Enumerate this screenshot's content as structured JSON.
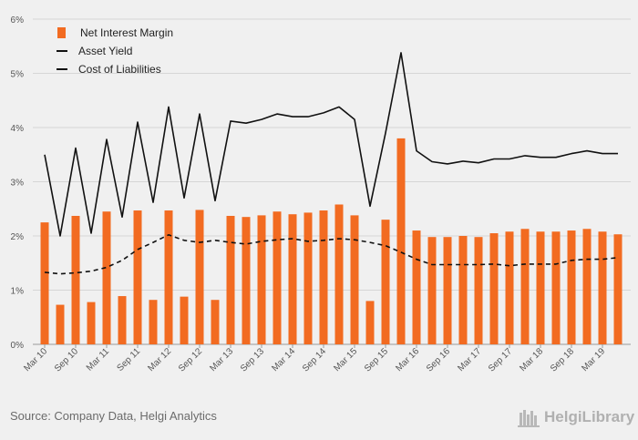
{
  "chart_data": {
    "type": "bar",
    "ylim": [
      0,
      6
    ],
    "yticks": [
      "0%",
      "1%",
      "2%",
      "3%",
      "4%",
      "5%",
      "6%"
    ],
    "tick_labels": [
      "Mar 10",
      "Sep 10",
      "Mar 11",
      "Sep 11",
      "Mar 12",
      "Sep 12",
      "Mar 13",
      "Sep 13",
      "Mar 14",
      "Sep 14",
      "Mar 15",
      "Sep 15",
      "Mar 16",
      "Sep 16",
      "Mar 17",
      "Sep 17",
      "Mar 18",
      "Sep 18",
      "Mar 19"
    ],
    "series": [
      {
        "name": "Net Interest Margin",
        "kind": "bar",
        "color": "#f26b21",
        "values": [
          2.25,
          0.73,
          2.37,
          0.78,
          2.45,
          0.89,
          2.47,
          0.82,
          2.47,
          0.88,
          2.48,
          0.82,
          2.37,
          2.35,
          2.38,
          2.45,
          2.4,
          2.43,
          2.47,
          2.58,
          2.38,
          0.8,
          2.3,
          3.8,
          2.1,
          1.98,
          1.98,
          2.0,
          1.98,
          2.05,
          2.08,
          2.13,
          2.08,
          2.08,
          2.1,
          2.13,
          2.08,
          2.03
        ]
      },
      {
        "name": "Asset Yield",
        "kind": "line",
        "color": "#111111",
        "values": [
          3.5,
          2.0,
          3.62,
          2.05,
          3.78,
          2.35,
          4.1,
          2.62,
          4.38,
          2.7,
          4.25,
          2.65,
          4.12,
          4.08,
          4.15,
          4.25,
          4.2,
          4.2,
          4.27,
          4.38,
          4.15,
          2.55,
          3.9,
          5.38,
          3.57,
          3.37,
          3.33,
          3.38,
          3.35,
          3.42,
          3.42,
          3.48,
          3.45,
          3.45,
          3.52,
          3.57,
          3.52,
          3.52
        ]
      },
      {
        "name": "Cost of Liabilities",
        "kind": "line-dashed",
        "color": "#111111",
        "values": [
          1.33,
          1.3,
          1.32,
          1.35,
          1.42,
          1.55,
          1.75,
          1.88,
          2.02,
          1.92,
          1.88,
          1.92,
          1.88,
          1.85,
          1.9,
          1.93,
          1.95,
          1.9,
          1.92,
          1.95,
          1.93,
          1.88,
          1.82,
          1.7,
          1.57,
          1.47,
          1.47,
          1.47,
          1.47,
          1.48,
          1.45,
          1.48,
          1.48,
          1.48,
          1.55,
          1.57,
          1.57,
          1.6
        ]
      }
    ]
  },
  "source": "Source: Company Data, Helgi Analytics",
  "logo_text": "HelgiLibrary"
}
